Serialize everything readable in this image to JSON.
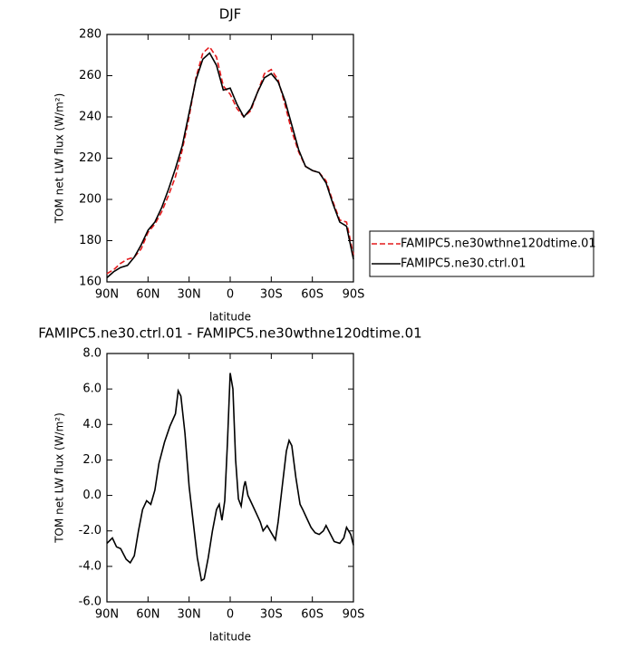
{
  "chart_data": [
    {
      "type": "line",
      "title": "DJF",
      "x_label": "latitude",
      "y_label": "TOM net LW flux (W/m²)",
      "x": [
        90,
        85,
        80,
        75,
        70,
        65,
        60,
        55,
        50,
        45,
        40,
        35,
        30,
        25,
        20,
        15,
        10,
        5,
        0,
        -5,
        -10,
        -15,
        -20,
        -25,
        -30,
        -35,
        -40,
        -45,
        -50,
        -55,
        -60,
        -65,
        -70,
        -75,
        -80,
        -85,
        -90
      ],
      "series": [
        {
          "name": "FAMIPC5.ne30wthne120dtime.01",
          "color": "#e41a1c",
          "style": "dashed",
          "values": [
            164,
            166,
            169,
            171,
            172,
            176,
            184,
            188,
            194,
            202,
            211,
            224,
            240,
            259,
            271,
            274,
            269,
            255,
            251,
            244,
            240,
            243,
            252,
            261,
            263,
            258,
            246,
            233,
            223,
            216,
            214,
            213,
            209,
            199,
            190,
            189,
            173
          ]
        },
        {
          "name": "FAMIPC5.ne30.ctrl.01",
          "color": "#000000",
          "style": "solid",
          "values": [
            162,
            165,
            167,
            168,
            172,
            178,
            185,
            189,
            196,
            205,
            215,
            226,
            242,
            258,
            268,
            271,
            265,
            253,
            254,
            246,
            240,
            244,
            252,
            259,
            261,
            257,
            248,
            236,
            224,
            216,
            214,
            213,
            208,
            198,
            189,
            187,
            171
          ]
        }
      ],
      "xlim": [
        90,
        -90
      ],
      "xticks": [
        {
          "value": 90,
          "label": "90N"
        },
        {
          "value": 60,
          "label": "60N"
        },
        {
          "value": 30,
          "label": "30N"
        },
        0,
        {
          "value": -30,
          "label": "30S"
        },
        {
          "value": -60,
          "label": "60S"
        },
        {
          "value": -90,
          "label": "90S"
        }
      ],
      "ylim": [
        160,
        280
      ],
      "yticks": [
        160,
        180,
        200,
        220,
        240,
        260,
        280
      ],
      "legend": "right"
    },
    {
      "type": "line",
      "title": "FAMIPC5.ne30.ctrl.01 - FAMIPC5.ne30wthne120dtime.01",
      "x_label": "latitude",
      "y_label": "TOM net LW flux (W/m²)",
      "x": [
        90,
        86,
        83,
        80,
        76,
        73,
        70,
        67,
        64,
        61,
        58,
        55,
        52,
        48,
        44,
        40,
        38,
        36,
        33,
        30,
        27,
        24,
        21,
        19,
        16,
        13,
        10,
        8,
        6,
        4,
        2,
        0,
        -2,
        -4,
        -6,
        -8,
        -10,
        -11,
        -13,
        -16,
        -19,
        -22,
        -24,
        -27,
        -30,
        -33,
        -35,
        -38,
        -41,
        -43,
        -45,
        -48,
        -51,
        -53,
        -56,
        -59,
        -62,
        -65,
        -68,
        -70,
        -72,
        -76,
        -80,
        -83,
        -85,
        -88,
        -90
      ],
      "series": [
        {
          "color": "#000000",
          "style": "solid",
          "values": [
            -2.7,
            -2.4,
            -2.9,
            -3.0,
            -3.6,
            -3.8,
            -3.4,
            -2.0,
            -0.8,
            -0.3,
            -0.5,
            0.3,
            1.8,
            3.0,
            3.9,
            4.6,
            5.9,
            5.6,
            3.5,
            0.5,
            -1.5,
            -3.5,
            -4.8,
            -4.7,
            -3.5,
            -2.0,
            -0.8,
            -0.5,
            -1.4,
            -0.3,
            3.0,
            6.9,
            6.0,
            2.0,
            -0.2,
            -0.6,
            0.5,
            0.8,
            0.0,
            -0.5,
            -1.0,
            -1.5,
            -2.0,
            -1.7,
            -2.1,
            -2.5,
            -1.5,
            0.5,
            2.5,
            3.1,
            2.8,
            1.0,
            -0.5,
            -0.8,
            -1.3,
            -1.8,
            -2.1,
            -2.2,
            -2.0,
            -1.7,
            -2.0,
            -2.6,
            -2.7,
            -2.4,
            -1.8,
            -2.2,
            -2.8
          ]
        }
      ],
      "xlim": [
        90,
        -90
      ],
      "xticks": [
        {
          "value": 90,
          "label": "90N"
        },
        {
          "value": 60,
          "label": "60N"
        },
        {
          "value": 30,
          "label": "30N"
        },
        0,
        {
          "value": -30,
          "label": "30S"
        },
        {
          "value": -60,
          "label": "60S"
        },
        {
          "value": -90,
          "label": "90S"
        }
      ],
      "ylim": [
        -6,
        8
      ],
      "yticks": [
        {
          "value": -6,
          "label": "-6.0"
        },
        {
          "value": -4,
          "label": "-4.0"
        },
        {
          "value": -2,
          "label": "-2.0"
        },
        {
          "value": 0,
          "label": "0.0"
        },
        {
          "value": 2,
          "label": "2.0"
        },
        {
          "value": 4,
          "label": "4.0"
        },
        {
          "value": 6,
          "label": "6.0"
        },
        {
          "value": 8,
          "label": "8.0"
        }
      ]
    }
  ]
}
